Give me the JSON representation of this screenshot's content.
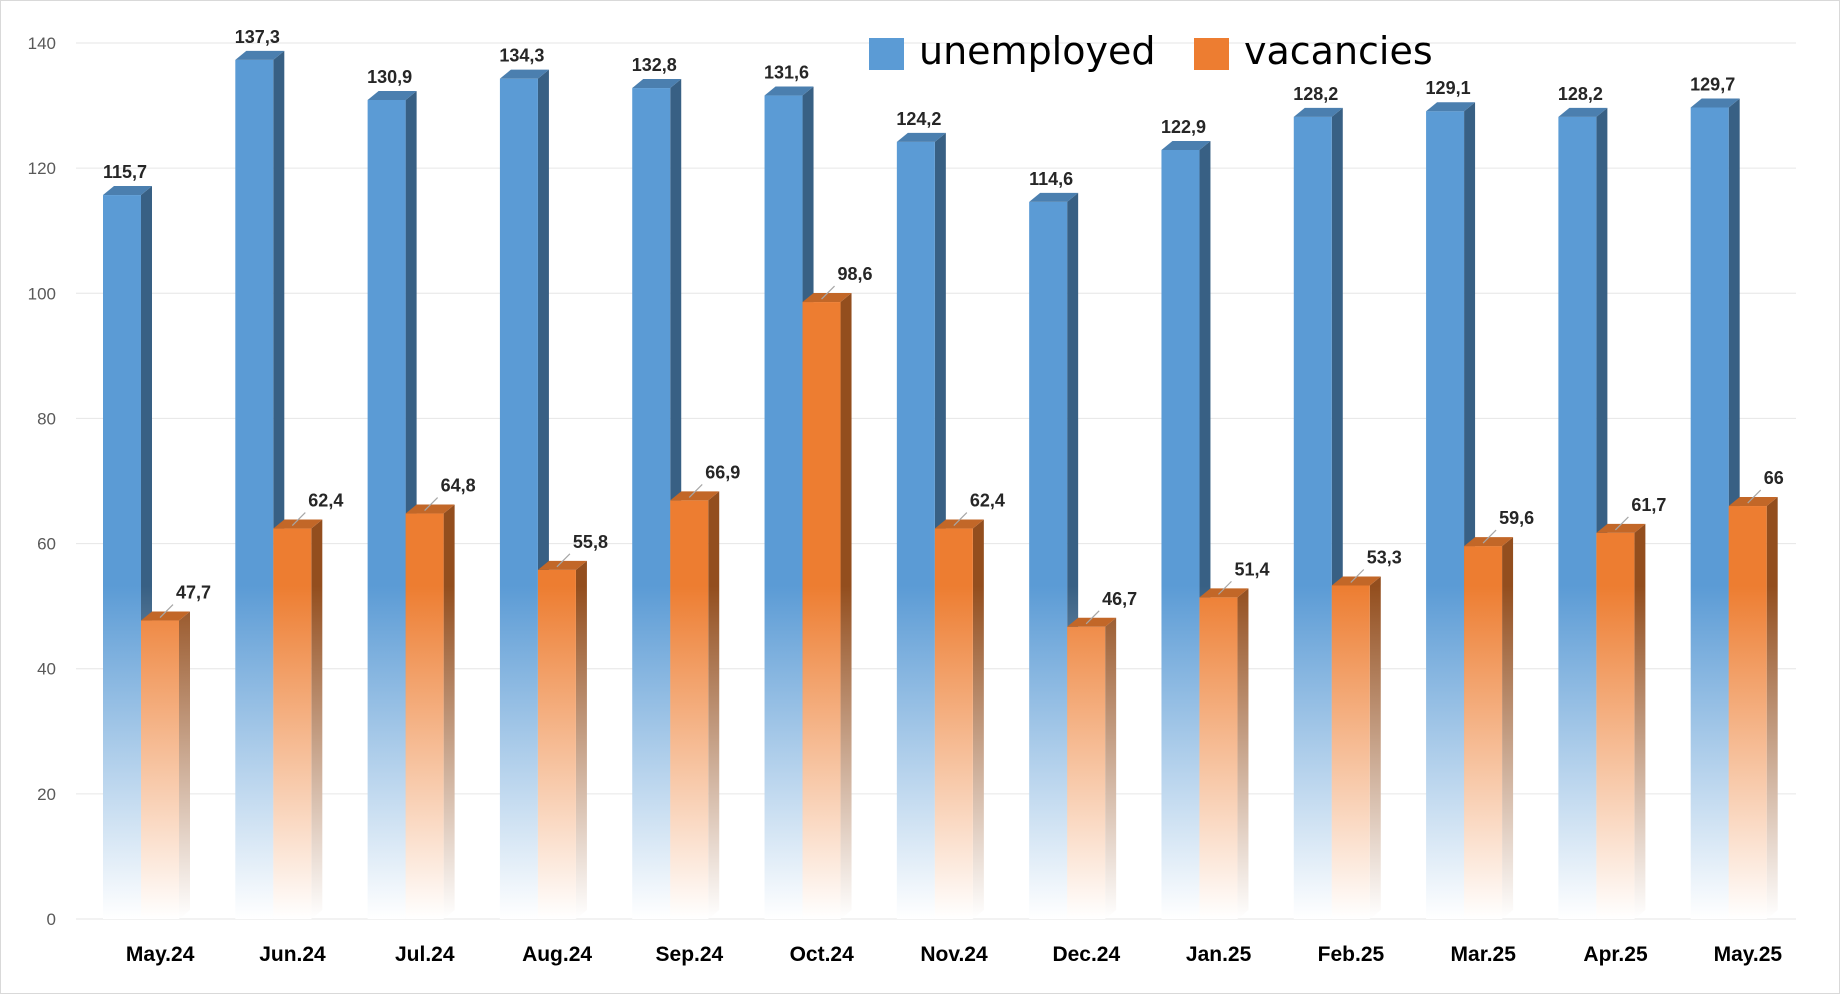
{
  "chart_data": {
    "type": "bar",
    "title": "",
    "xlabel": "",
    "ylabel": "",
    "ylim": [
      0,
      140
    ],
    "yticks": [
      0,
      20,
      40,
      60,
      80,
      100,
      120,
      140
    ],
    "grid": true,
    "legend_position": "top-center",
    "categories": [
      "May.24",
      "Jun.24",
      "Jul.24",
      "Aug.24",
      "Sep.24",
      "Oct.24",
      "Nov.24",
      "Dec.24",
      "Jan.25",
      "Feb.25",
      "Mar.25",
      "Apr.25",
      "May.25"
    ],
    "series": [
      {
        "name": "unemployed",
        "color": "#5b9bd5",
        "values": [
          115.7,
          137.3,
          130.9,
          134.3,
          132.8,
          131.6,
          124.2,
          114.6,
          122.9,
          128.2,
          129.1,
          128.2,
          129.7
        ],
        "labels": [
          "115,7",
          "137,3",
          "130,9",
          "134,3",
          "132,8",
          "131,6",
          "124,2",
          "114,6",
          "122,9",
          "128,2",
          "129,1",
          "128,2",
          "129,7"
        ]
      },
      {
        "name": "vacancies",
        "color": "#ed7d31",
        "values": [
          47.7,
          62.4,
          64.8,
          55.8,
          66.9,
          98.6,
          62.4,
          46.7,
          51.4,
          53.3,
          59.6,
          61.7,
          66
        ],
        "labels": [
          "47,7",
          "62,4",
          "64,8",
          "55,8",
          "66,9",
          "98,6",
          "62,4",
          "46,7",
          "51,4",
          "53,3",
          "59,6",
          "61,7",
          "66"
        ]
      }
    ]
  }
}
